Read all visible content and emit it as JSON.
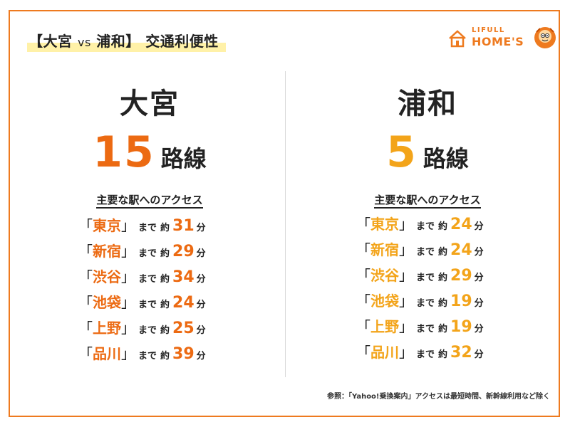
{
  "header": {
    "title_open": "【大宮 ",
    "title_vs": "vs",
    "title_close": " 浦和】 交通利便性",
    "logo_top": "LIFULL",
    "logo_bottom": "HOME'S"
  },
  "colors": {
    "frame": "#ee7a1f",
    "omiya_accent": "#ec6a12",
    "urawa_accent": "#f3a41a",
    "title_highlight": "#fff1a8"
  },
  "left": {
    "city": "大宮",
    "lines_count": "15",
    "lines_unit": "路線",
    "access_heading": "主要な駅へのアクセス",
    "rows": [
      {
        "open": "「",
        "station": "東京",
        "close": "」",
        "made": "まで",
        "yaku": "約",
        "minutes": "31",
        "unit": "分"
      },
      {
        "open": "「",
        "station": "新宿",
        "close": "」",
        "made": "まで",
        "yaku": "約",
        "minutes": "29",
        "unit": "分"
      },
      {
        "open": "「",
        "station": "渋谷",
        "close": "」",
        "made": "まで",
        "yaku": "約",
        "minutes": "34",
        "unit": "分"
      },
      {
        "open": "「",
        "station": "池袋",
        "close": "」",
        "made": "まで",
        "yaku": "約",
        "minutes": "24",
        "unit": "分"
      },
      {
        "open": "「",
        "station": "上野",
        "close": "」",
        "made": "まで",
        "yaku": "約",
        "minutes": "25",
        "unit": "分"
      },
      {
        "open": "「",
        "station": "品川",
        "close": "」",
        "made": "まで",
        "yaku": "約",
        "minutes": "39",
        "unit": "分"
      }
    ]
  },
  "right": {
    "city": "浦和",
    "lines_count": "5",
    "lines_unit": "路線",
    "access_heading": "主要な駅へのアクセス",
    "rows": [
      {
        "open": "「",
        "station": "東京",
        "close": "」",
        "made": "まで",
        "yaku": "約",
        "minutes": "24",
        "unit": "分"
      },
      {
        "open": "「",
        "station": "新宿",
        "close": "」",
        "made": "まで",
        "yaku": "約",
        "minutes": "24",
        "unit": "分"
      },
      {
        "open": "「",
        "station": "渋谷",
        "close": "」",
        "made": "まで",
        "yaku": "約",
        "minutes": "29",
        "unit": "分"
      },
      {
        "open": "「",
        "station": "池袋",
        "close": "」",
        "made": "まで",
        "yaku": "約",
        "minutes": "19",
        "unit": "分"
      },
      {
        "open": "「",
        "station": "上野",
        "close": "」",
        "made": "まで",
        "yaku": "約",
        "minutes": "19",
        "unit": "分"
      },
      {
        "open": "「",
        "station": "品川",
        "close": "」",
        "made": "まで",
        "yaku": "約",
        "minutes": "32",
        "unit": "分"
      }
    ]
  },
  "footer": {
    "note": "参照：「Yahoo!乗換案内」アクセスは最短時間、新幹線利用など除く"
  }
}
